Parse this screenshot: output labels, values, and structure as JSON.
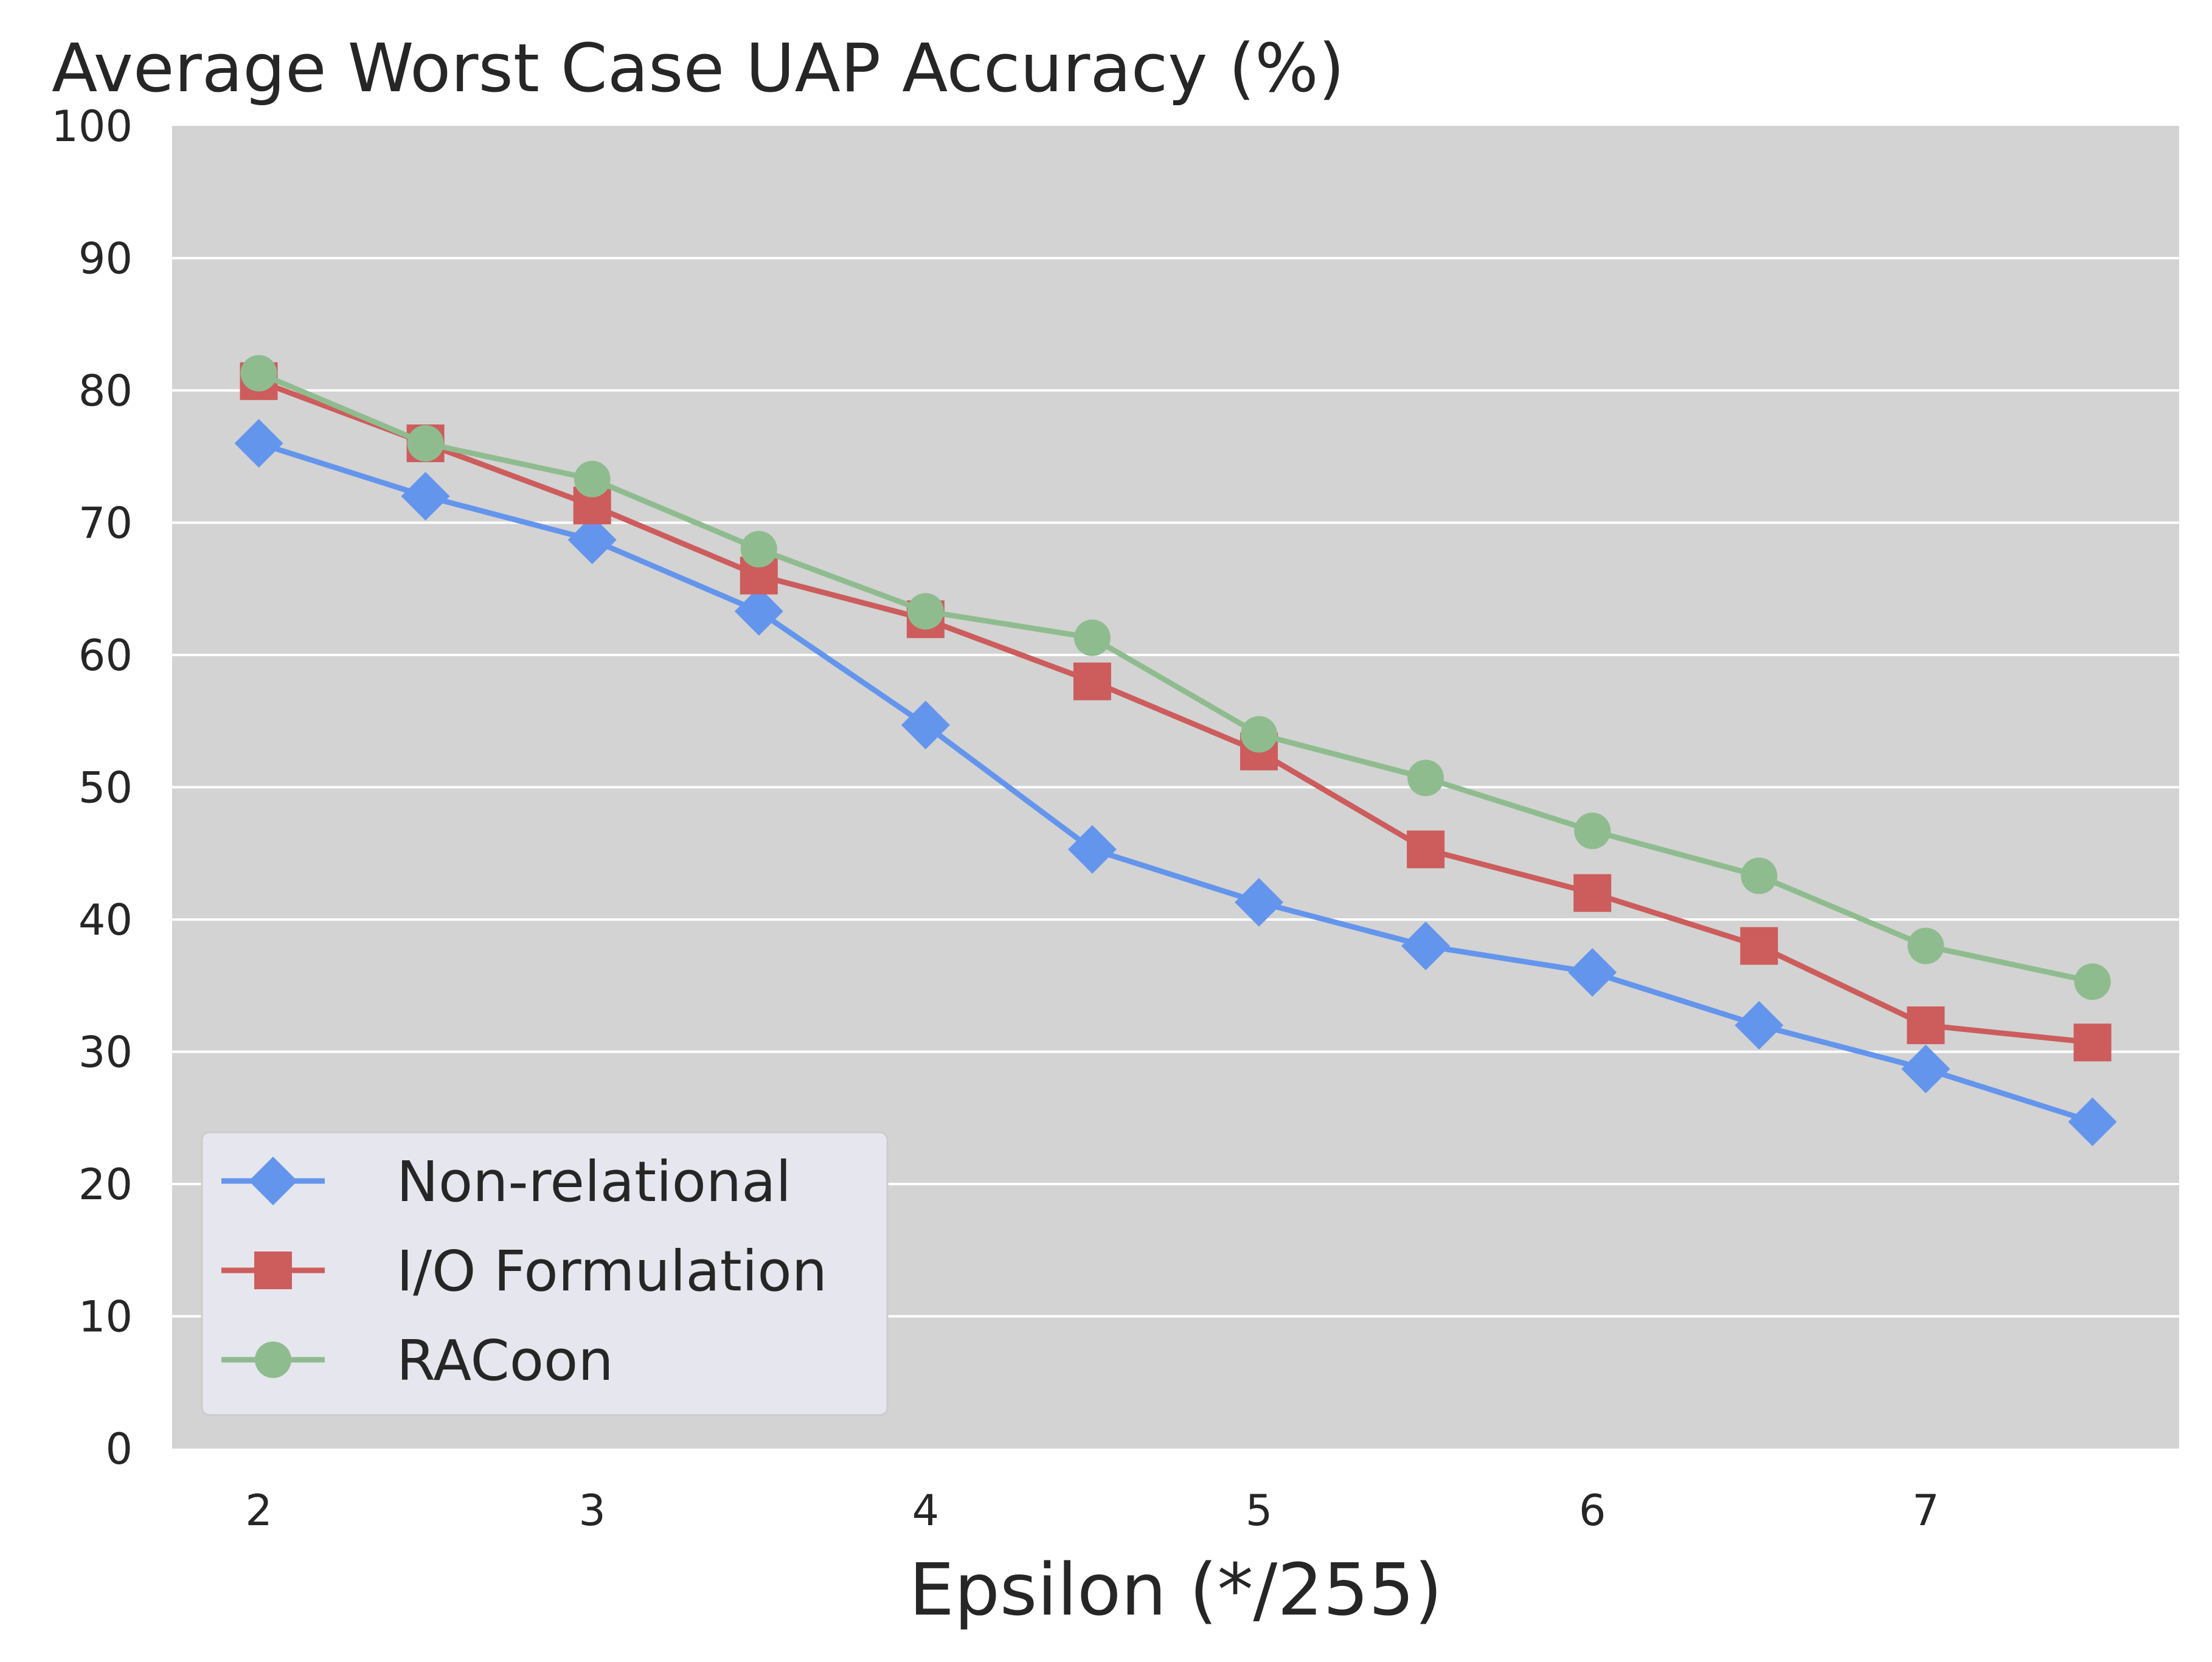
{
  "chart_data": {
    "type": "line",
    "title": "Average Worst Case UAP Accuracy (%)",
    "xlabel": "Epsilon (*/255)",
    "ylabel": "",
    "xlim": [
      1.74,
      7.76
    ],
    "ylim": [
      0,
      100
    ],
    "xticks": [
      2,
      3,
      4,
      5,
      6,
      7
    ],
    "yticks": [
      0,
      10,
      20,
      30,
      40,
      50,
      60,
      70,
      80,
      90,
      100
    ],
    "grid": true,
    "legend_position": "lower-left",
    "x": [
      2,
      2.5,
      3,
      3.5,
      4,
      4.5,
      5,
      5.5,
      6,
      6.5,
      7,
      7.5
    ],
    "series": [
      {
        "name": "Non-relational",
        "color": "#6495ED",
        "marker": "diamond",
        "values": [
          76,
          72,
          68.7,
          63.3,
          54.7,
          45.3,
          41.3,
          38,
          36,
          32,
          28.7,
          24.7
        ]
      },
      {
        "name": "I/O Formulation",
        "color": "#CD5C5C",
        "marker": "square",
        "values": [
          80.7,
          76,
          71.3,
          66,
          62.7,
          58,
          52.7,
          45.3,
          42,
          38,
          32,
          30.7
        ]
      },
      {
        "name": "RACoon",
        "color": "#8FBC8F",
        "marker": "circle",
        "values": [
          81.3,
          76,
          73.3,
          68,
          63.3,
          61.3,
          54,
          50.7,
          46.7,
          43.3,
          38,
          35.3
        ]
      }
    ],
    "colors": {
      "plot_background": "#D3D3D3",
      "grid": "#FFFFFF",
      "legend_background": "#E6E6EE",
      "legend_border": "#CCCCCC"
    }
  }
}
